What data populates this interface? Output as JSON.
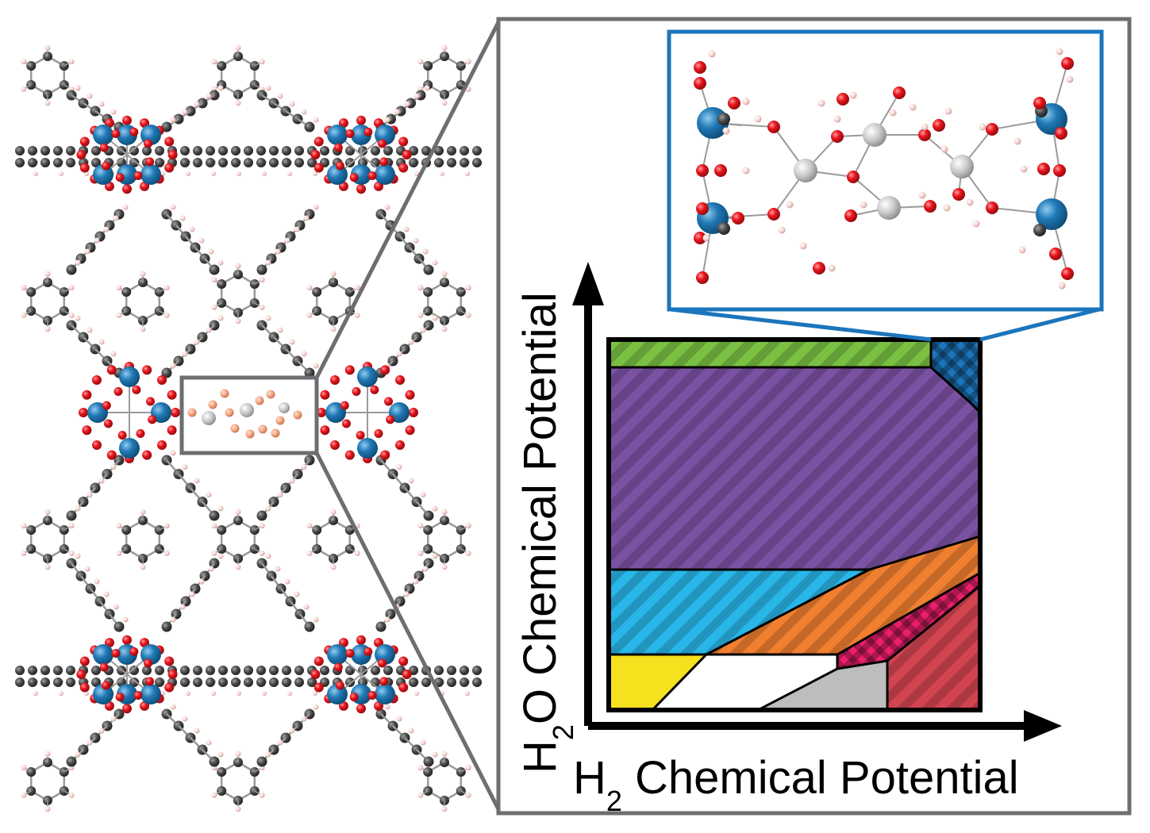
{
  "figure": {
    "x_axis": {
      "label_main": "H",
      "label_sub": "2",
      "label_rest": " Chemical Potential"
    },
    "y_axis": {
      "label_main": "H",
      "label_sub": "2",
      "label_rest": "O Chemical Potential"
    }
  },
  "colors": {
    "frame_gray": "#6d6e71",
    "inset_blue": "#1b75bc",
    "atom_blue": "#2179b5",
    "atom_red": "#e8141c",
    "atom_gray_dark": "#4a4a4a",
    "atom_silver": "#c8c8c8",
    "atom_pink": "#f4d0cc",
    "atom_salmon": "#f0a07c",
    "phase_green": "#7ac143",
    "phase_purple": "#7b52a3",
    "phase_cyan": "#29b6e8",
    "phase_orange": "#f07f30",
    "phase_pink": "#ec1f6b",
    "phase_red": "#d24450",
    "phase_yellow": "#f5e11e",
    "phase_gray": "#bdbdbd",
    "phase_navy": "#1b75bc"
  }
}
